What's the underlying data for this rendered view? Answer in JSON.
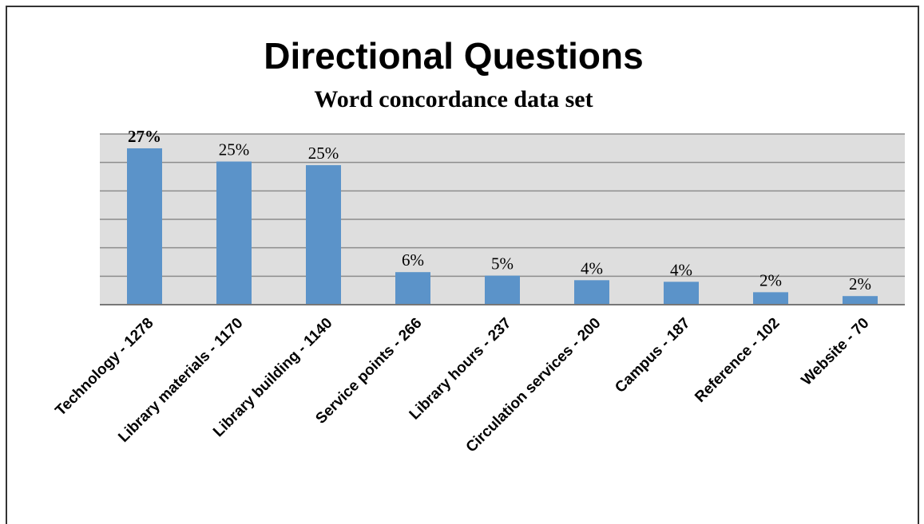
{
  "chart_data": {
    "type": "bar",
    "title": "Directional Questions",
    "subtitle": "Word concordance data set",
    "categories": [
      "Technology - 1278",
      "Library materials - 1170",
      "Library building - 1140",
      "Service points - 266",
      "Library hours - 237",
      "Circulation services - 200",
      "Campus - 187",
      "Reference - 102",
      "Website - 70"
    ],
    "values": [
      27.48,
      25.16,
      24.52,
      5.72,
      5.1,
      4.3,
      4.02,
      2.19,
      1.51
    ],
    "value_labels": [
      "27%",
      "25%",
      "25%",
      "6%",
      "5%",
      "4%",
      "4%",
      "2%",
      "2%"
    ],
    "color": "#5b93c9",
    "ylim": [
      0,
      30
    ],
    "yticks": [
      0,
      5,
      10,
      15,
      20,
      25,
      30
    ],
    "grid": true
  }
}
